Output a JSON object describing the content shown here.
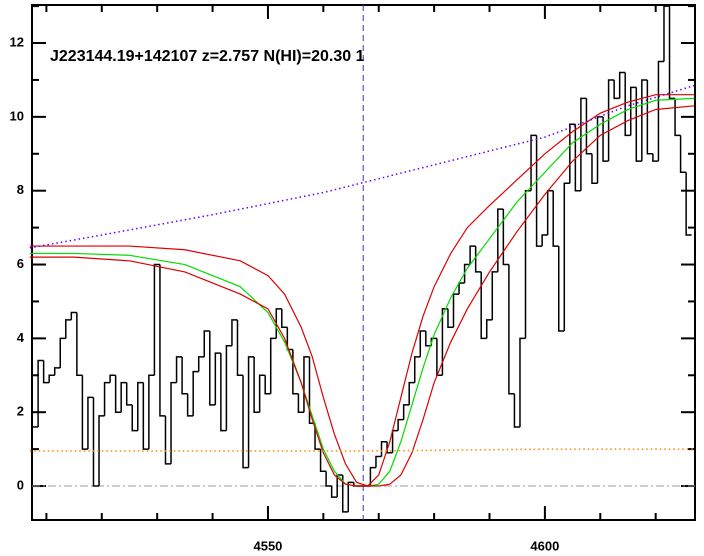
{
  "chart_data": {
    "type": "spectrum",
    "title": "J223144.19+142107 z=2.757 N(HI)=20.30 1",
    "xlim": [
      4507.4,
      4627.1
    ],
    "ylim": [
      -0.92,
      13.03
    ],
    "xticks": [
      4550,
      4600
    ],
    "xminor": [
      4510,
      4520,
      4530,
      4540,
      4560,
      4570,
      4580,
      4590,
      4610,
      4620
    ],
    "yticks": [
      0,
      2,
      4,
      6,
      8,
      10,
      12
    ],
    "yminor": [
      1,
      3,
      5,
      7,
      9,
      11,
      13
    ],
    "zero_line": 0,
    "vline": 4567.2,
    "series": [
      {
        "style": "step",
        "color": "#000000",
        "x": [
          4508,
          4509,
          4510,
          4511,
          4512,
          4513,
          4514,
          4515,
          4516,
          4517,
          4518,
          4519,
          4520,
          4521,
          4522,
          4523,
          4524,
          4525,
          4526,
          4527,
          4528,
          4529,
          4530,
          4531,
          4532,
          4533,
          4534,
          4535,
          4536,
          4537,
          4538,
          4539,
          4540,
          4541,
          4542,
          4543,
          4544,
          4545,
          4546,
          4547,
          4548,
          4549,
          4550,
          4551,
          4552,
          4553,
          4554,
          4555,
          4556,
          4557,
          4558,
          4559,
          4560,
          4561,
          4562,
          4563,
          4564,
          4565,
          4566,
          4567,
          4568,
          4569,
          4570,
          4571,
          4572,
          4573,
          4574,
          4575,
          4576,
          4577,
          4578,
          4579,
          4580,
          4581,
          4582,
          4583,
          4584,
          4585,
          4586,
          4587,
          4588,
          4589,
          4590,
          4591,
          4592,
          4593,
          4594,
          4595,
          4596,
          4597,
          4598,
          4599,
          4600,
          4601,
          4602,
          4603,
          4604,
          4605,
          4606,
          4607,
          4608,
          4609,
          4610,
          4611,
          4612,
          4613,
          4614,
          4615,
          4616,
          4617,
          4618,
          4619,
          4620,
          4621,
          4622,
          4623,
          4624,
          4625,
          4626
        ],
        "values": [
          1.6,
          3.4,
          2.8,
          3.0,
          3.2,
          4.0,
          4.5,
          4.7,
          3.0,
          1.0,
          2.4,
          0.0,
          1.9,
          2.8,
          3.0,
          2.0,
          2.8,
          2.2,
          1.5,
          2.8,
          1.0,
          3.0,
          6.0,
          1.9,
          0.6,
          2.8,
          3.5,
          2.5,
          1.9,
          3.1,
          3.5,
          4.2,
          2.2,
          3.6,
          1.5,
          3.8,
          4.5,
          3.0,
          0.5,
          3.5,
          2.0,
          3.0,
          2.5,
          4.0,
          4.8,
          4.3,
          3.7,
          2.5,
          2.0,
          3.5,
          1.7,
          1.0,
          0.4,
          0.0,
          -0.3,
          0.3,
          -0.7,
          0.1,
          0.0,
          0.0,
          0.0,
          0.5,
          0.8,
          1.2,
          0.9,
          1.5,
          1.8,
          2.2,
          2.8,
          3.5,
          4.2,
          3.8,
          4.0,
          3.0,
          4.8,
          4.3,
          5.2,
          5.5,
          6.0,
          6.5,
          5.8,
          4.0,
          4.5,
          5.8,
          7.5,
          6.0,
          2.5,
          1.6,
          4.0,
          8.0,
          9.5,
          6.5,
          6.8,
          8.0,
          6.5,
          4.2,
          8.2,
          9.8,
          8.0,
          10.5,
          9.0,
          8.2,
          10.0,
          8.8,
          11.0,
          10.5,
          11.2,
          9.5,
          10.8,
          8.8,
          11.0,
          9.0,
          8.8,
          11.5,
          13.0,
          10.5,
          9.5,
          8.5,
          6.8
        ]
      },
      {
        "style": "line",
        "color": "#00dd00",
        "x": [
          4507,
          4515,
          4525,
          4535,
          4545,
          4550,
          4553,
          4556,
          4558,
          4560,
          4562,
          4564,
          4566,
          4568,
          4570,
          4572,
          4574,
          4576,
          4578,
          4580,
          4583,
          4586,
          4590,
          4595,
          4600,
          4605,
          4610,
          4615,
          4620,
          4627
        ],
        "values": [
          6.3,
          6.3,
          6.25,
          6.0,
          5.4,
          4.7,
          3.9,
          2.8,
          1.9,
          1.0,
          0.4,
          0.05,
          0,
          0,
          0.05,
          0.4,
          1.2,
          2.2,
          3.2,
          4.1,
          5.1,
          5.9,
          6.7,
          7.7,
          8.5,
          9.3,
          9.8,
          10.2,
          10.45,
          10.5
        ]
      },
      {
        "style": "line",
        "color": "#dd0000",
        "x": [
          4507,
          4515,
          4525,
          4535,
          4545,
          4550,
          4553,
          4556,
          4558,
          4560,
          4562,
          4564,
          4566,
          4568,
          4570,
          4572,
          4574,
          4576,
          4578,
          4580,
          4583,
          4586,
          4590,
          4595,
          4600,
          4605,
          4610,
          4615,
          4620,
          4627
        ],
        "values": [
          6.5,
          6.5,
          6.5,
          6.4,
          6.1,
          5.7,
          5.2,
          4.3,
          3.5,
          2.4,
          1.4,
          0.6,
          0.1,
          0,
          0.3,
          1.2,
          2.4,
          3.6,
          4.6,
          5.4,
          6.3,
          7.0,
          7.6,
          8.3,
          9.0,
          9.6,
          10.1,
          10.4,
          10.6,
          10.6
        ]
      },
      {
        "style": "line",
        "color": "#dd0000",
        "x": [
          4507,
          4515,
          4525,
          4535,
          4545,
          4550,
          4553,
          4556,
          4558,
          4560,
          4562,
          4564,
          4566,
          4568,
          4570,
          4572,
          4574,
          4576,
          4578,
          4580,
          4583,
          4586,
          4590,
          4595,
          4600,
          4605,
          4610,
          4615,
          4620,
          4627
        ],
        "values": [
          6.2,
          6.2,
          6.1,
          5.8,
          5.2,
          4.8,
          4.0,
          2.8,
          1.8,
          0.9,
          0.3,
          0.05,
          0,
          0,
          0,
          0.05,
          0.3,
          0.9,
          1.8,
          2.8,
          3.9,
          4.8,
          5.8,
          6.9,
          7.9,
          8.8,
          9.5,
          9.9,
          10.2,
          10.3
        ]
      },
      {
        "style": "dotted",
        "color": "#6600ff",
        "x": [
          4507,
          4520,
          4540,
          4560,
          4580,
          4600,
          4615,
          4627
        ],
        "values": [
          6.45,
          6.8,
          7.35,
          7.95,
          8.7,
          9.45,
          10.3,
          10.85
        ]
      },
      {
        "style": "dotted",
        "color": "#ff8800",
        "x": [
          4507,
          4540,
          4570,
          4600,
          4627
        ],
        "values": [
          0.95,
          0.95,
          0.95,
          1.0,
          1.0
        ]
      }
    ]
  }
}
